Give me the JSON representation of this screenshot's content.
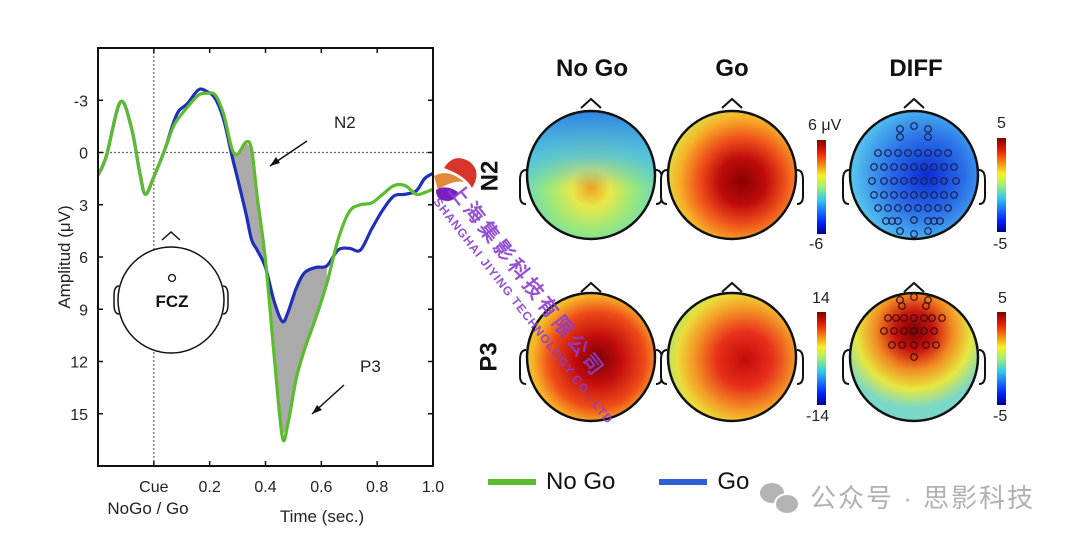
{
  "chart_data": [
    {
      "type": "line",
      "title": "",
      "xlabel": "Time (sec.)",
      "ylabel": "Amplitud (μV)",
      "xlim": [
        -0.2,
        1.0
      ],
      "ylim": [
        18,
        -6
      ],
      "y_inverted": true,
      "x_ticks": [
        {
          "value": 0.0,
          "label": "Cue"
        },
        {
          "value": 0.2,
          "label": "0.2"
        },
        {
          "value": 0.4,
          "label": "0.4"
        },
        {
          "value": 0.6,
          "label": "0.6"
        },
        {
          "value": 0.8,
          "label": "0.8"
        },
        {
          "value": 1.0,
          "label": "1.0"
        }
      ],
      "x_sublabel": "NoGo / Go",
      "y_ticks": [
        -3,
        0,
        3,
        6,
        9,
        12,
        15
      ],
      "reference_lines": {
        "vertical_x": 0.0,
        "horizontal_y": 0
      },
      "grid": false,
      "series": [
        {
          "name": "No Go",
          "color": "#5dbb2f",
          "x": [
            -0.2,
            -0.17,
            -0.12,
            -0.08,
            -0.05,
            -0.03,
            0.0,
            0.04,
            0.07,
            0.09,
            0.12,
            0.16,
            0.19,
            0.22,
            0.25,
            0.28,
            0.3,
            0.33,
            0.35,
            0.37,
            0.4,
            0.43,
            0.46,
            0.48,
            0.51,
            0.54,
            0.58,
            0.62,
            0.66,
            0.7,
            0.74,
            0.78,
            0.82,
            0.86,
            0.9,
            0.94,
            0.97,
            1.0
          ],
          "y": [
            1.3,
            0.2,
            -2.9,
            -1.4,
            1.2,
            2.4,
            1.4,
            -0.2,
            -1.5,
            -2.0,
            -2.6,
            -3.3,
            -3.4,
            -3.3,
            -2.2,
            -0.2,
            0.1,
            -0.6,
            -0.2,
            2.5,
            6.2,
            11.5,
            16.3,
            15.6,
            13.0,
            11.3,
            9.5,
            7.5,
            5.0,
            3.4,
            3.0,
            2.9,
            2.4,
            1.9,
            1.9,
            2.4,
            2.3,
            2.1
          ]
        },
        {
          "name": "Go",
          "color": "#1f2fb8",
          "x": [
            -0.2,
            -0.17,
            -0.12,
            -0.08,
            -0.05,
            -0.03,
            0.0,
            0.04,
            0.07,
            0.09,
            0.12,
            0.16,
            0.19,
            0.22,
            0.25,
            0.28,
            0.3,
            0.33,
            0.35,
            0.37,
            0.4,
            0.43,
            0.46,
            0.48,
            0.51,
            0.54,
            0.58,
            0.62,
            0.66,
            0.7,
            0.74,
            0.78,
            0.82,
            0.86,
            0.9,
            0.94,
            0.97,
            1.0
          ],
          "y": [
            1.3,
            0.2,
            -2.9,
            -1.4,
            1.2,
            2.4,
            1.4,
            -0.2,
            -1.7,
            -2.4,
            -2.8,
            -3.6,
            -3.5,
            -3.1,
            -1.9,
            0.2,
            1.5,
            3.5,
            5.0,
            5.6,
            6.6,
            8.5,
            9.7,
            9.2,
            7.8,
            6.9,
            6.6,
            6.5,
            5.6,
            5.5,
            5.6,
            4.4,
            3.3,
            2.5,
            2.4,
            2.2,
            1.5,
            1.2
          ]
        }
      ],
      "shaded_difference": {
        "color": "#aaaaaa",
        "between": [
          "No Go",
          "Go"
        ],
        "regions_sec": [
          [
            0.28,
            0.4
          ],
          [
            0.4,
            0.64
          ]
        ]
      },
      "annotations": [
        {
          "text": "N2",
          "x": 0.48,
          "y": -1.8,
          "arrow_to": [
            0.39,
            0.9
          ]
        },
        {
          "text": "P3",
          "x": 0.63,
          "y": 12.0,
          "arrow_to": [
            0.56,
            15.1
          ]
        }
      ],
      "inset": {
        "type": "head-montage",
        "electrode_label": "FCZ"
      }
    },
    {
      "type": "heatmap",
      "subtype": "scalp-topography",
      "columns": [
        "No Go",
        "Go",
        "DIFF"
      ],
      "rows": [
        {
          "label": "N2",
          "colorbar_main": {
            "max": "6 μV",
            "min": "-6"
          },
          "colorbar_diff": {
            "max": "5",
            "min": "-5"
          },
          "maps": {
            "No Go": {
              "description": "frontal negative (blue), central-posterior positive (orange) focus",
              "peak_value_approx": 3,
              "min_value_approx": -4
            },
            "Go": {
              "description": "widespread positive, dark-red central-right peak",
              "peak_value_approx": 6,
              "min_value_approx": 1
            },
            "DIFF": {
              "description": "widespread negative difference, strongest fronto-central",
              "min_value_approx": -4,
              "significant_electrodes_count": 55
            }
          }
        },
        {
          "label": "P3",
          "colorbar_main": {
            "max": "14",
            "min": "-14"
          },
          "colorbar_diff": {
            "max": "5",
            "min": "-5"
          },
          "maps": {
            "No Go": {
              "description": "strong positive, dark-red central peak",
              "peak_value_approx": 14,
              "min_value_approx": 2
            },
            "Go": {
              "description": "positive central-right red region",
              "peak_value_approx": 10,
              "min_value_approx": 2
            },
            "DIFF": {
              "description": "frontal-central positive difference, dark red",
              "peak_value_approx": 5,
              "min_value_approx": -1,
              "significant_electrodes_count": 24
            }
          }
        }
      ],
      "colormap": "jet"
    }
  ],
  "figure": {
    "inset_label": "FCZ",
    "row_labels": [
      "N2",
      "P3"
    ],
    "column_titles": [
      "No Go",
      "Go",
      "DIFF"
    ],
    "colorbar_n2_main_top": "6 μV",
    "colorbar_n2_main_bottom": "-6",
    "colorbar_n2_diff_top": "5",
    "colorbar_n2_diff_bottom": "-5",
    "colorbar_p3_main_top": "14",
    "colorbar_p3_main_bottom": "-14",
    "colorbar_p3_diff_top": "5",
    "colorbar_p3_diff_bottom": "-5"
  },
  "legend": [
    {
      "label": "No Go",
      "color": "#5dbb2f"
    },
    {
      "label": "Go",
      "color": "#2f5fd6"
    }
  ],
  "watermarks": {
    "diagonal_cn": "上海集影科技有限公司",
    "diagonal_en": "SHANGHAI JIYING TECHNOLOGY CO., LTD",
    "footer": "公众号 · 思影科技"
  }
}
